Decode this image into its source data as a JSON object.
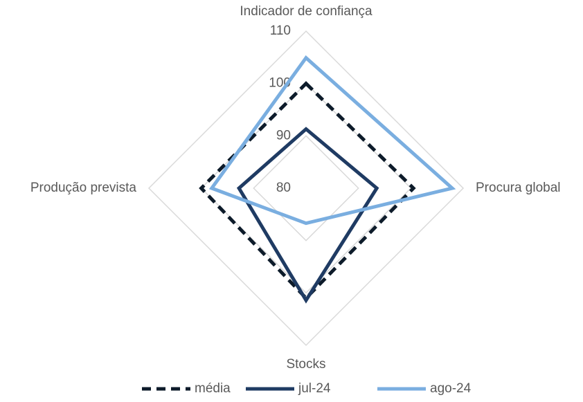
{
  "chart_data": {
    "type": "radar",
    "categories": [
      "Indicador de confiança",
      "Procura global",
      "Stocks",
      "Produção prevista"
    ],
    "rlim": [
      80,
      110
    ],
    "rticks": [
      80,
      90,
      100,
      110
    ],
    "grid": true,
    "legend": "bottom",
    "series": [
      {
        "name": "média",
        "color": "#0d1b2a",
        "dashed": true,
        "values": [
          100,
          100.5,
          101,
          100
        ]
      },
      {
        "name": "jul-24",
        "color": "#1f3b63",
        "dashed": false,
        "values": [
          91.3,
          93.5,
          101.4,
          92.8
        ]
      },
      {
        "name": "ago-24",
        "color": "#7aaee0",
        "dashed": false,
        "values": [
          104.9,
          107.9,
          86.7,
          98
        ]
      }
    ]
  }
}
